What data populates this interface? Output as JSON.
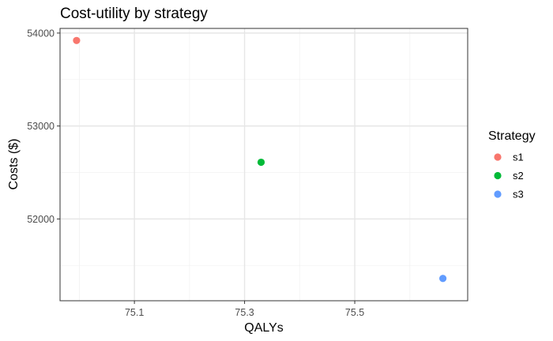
{
  "chart_data": {
    "type": "scatter",
    "title": "Cost-utility by strategy",
    "xlabel": "QALYs",
    "ylabel": "Costs ($)",
    "xlim": [
      74.965,
      75.705
    ],
    "ylim": [
      51120,
      54050
    ],
    "x_ticks": [
      75.1,
      75.3,
      75.5
    ],
    "y_ticks": [
      52000,
      53000,
      54000
    ],
    "grid": true,
    "legend": {
      "title": "Strategy",
      "placement": "right"
    },
    "series": [
      {
        "name": "s1",
        "color": "#F8766D",
        "points": [
          {
            "x": 74.995,
            "y": 53920
          }
        ]
      },
      {
        "name": "s2",
        "color": "#00BA38",
        "points": [
          {
            "x": 75.33,
            "y": 52610
          }
        ]
      },
      {
        "name": "s3",
        "color": "#619CFF",
        "points": [
          {
            "x": 75.66,
            "y": 51360
          }
        ]
      }
    ]
  }
}
